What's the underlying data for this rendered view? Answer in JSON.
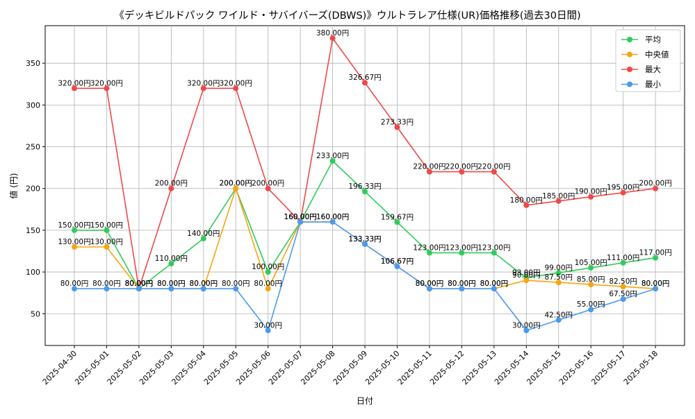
{
  "chart_data": {
    "type": "line",
    "title": "《デッキビルドパック ワイルド・サバイバーズ(DBWS)》ウルトラレア仕様(UR)価格推移(過去30日間)",
    "xlabel": "日付",
    "ylabel": "値 (円)",
    "ylim": [
      12,
      395
    ],
    "yticks": [
      50,
      100,
      150,
      200,
      250,
      300,
      350
    ],
    "grid": true,
    "legend_position": "top-right",
    "value_suffix": "円",
    "categories": [
      "2025-04-30",
      "2025-05-01",
      "2025-05-02",
      "2025-05-03",
      "2025-05-04",
      "2025-05-05",
      "2025-05-06",
      "2025-05-07",
      "2025-05-08",
      "2025-05-09",
      "2025-05-10",
      "2025-05-11",
      "2025-05-12",
      "2025-05-13",
      "2025-05-14",
      "2025-05-15",
      "2025-05-16",
      "2025-05-17",
      "2025-05-18"
    ],
    "series": [
      {
        "name": "平均",
        "color": "#2ecc5a",
        "values": [
          150,
          150,
          80,
          110,
          140,
          200,
          100,
          160,
          233,
          196.33,
          159.67,
          123,
          123,
          123,
          93,
          99,
          105,
          111,
          117
        ]
      },
      {
        "name": "中央値",
        "color": "#f5a510",
        "values": [
          130,
          130,
          80,
          80,
          80,
          200,
          80,
          160,
          160,
          133.33,
          106.67,
          80,
          80,
          80,
          90,
          87.5,
          85,
          82.5,
          80
        ]
      },
      {
        "name": "最大",
        "color": "#f04848",
        "values": [
          320,
          320,
          80,
          200,
          320,
          320,
          200,
          160,
          380,
          326.67,
          273.33,
          220,
          220,
          220,
          180,
          185,
          190,
          195,
          200
        ]
      },
      {
        "name": "最小",
        "color": "#4a9af0",
        "values": [
          80,
          80,
          80,
          80,
          80,
          80,
          30,
          160,
          160,
          133.33,
          106.67,
          80,
          80,
          80,
          30,
          42.5,
          55,
          67.5,
          80
        ]
      }
    ]
  }
}
